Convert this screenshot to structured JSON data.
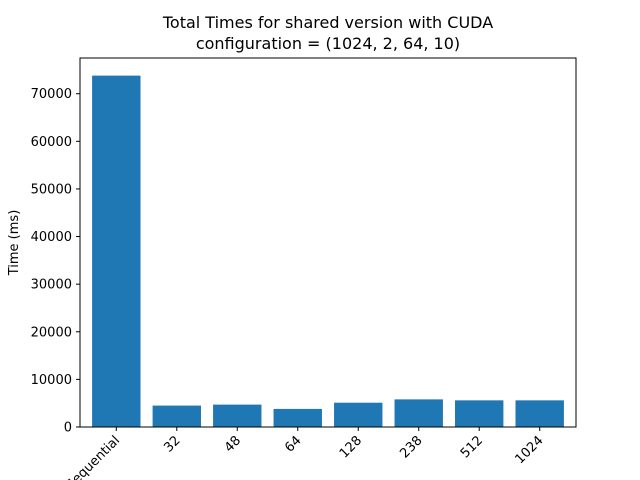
{
  "chart_data": {
    "type": "bar",
    "title": "Total Times for shared version with CUDA",
    "subtitle": "configuration = (1024, 2, 64, 10)",
    "xlabel": "",
    "ylabel": "Time (ms)",
    "categories": [
      "Sequential",
      "32",
      "48",
      "64",
      "128",
      "238",
      "512",
      "1024"
    ],
    "values": [
      73800,
      4500,
      4700,
      3800,
      5100,
      5800,
      5600,
      5600
    ],
    "ylim": [
      0,
      77500
    ],
    "yticks": [
      0,
      10000,
      20000,
      30000,
      40000,
      50000,
      60000,
      70000
    ],
    "bar_color": "#1f77b4",
    "grid": false,
    "legend": "none"
  }
}
